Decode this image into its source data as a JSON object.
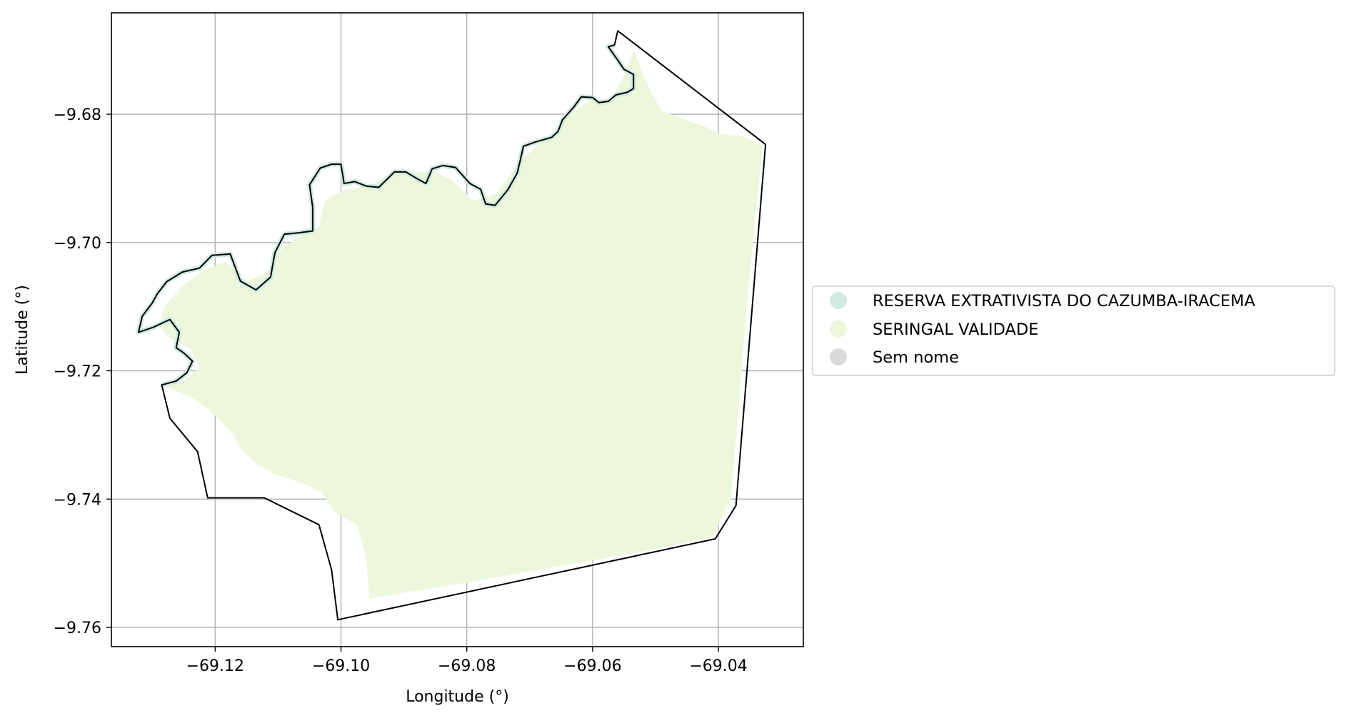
{
  "map": {
    "xlabel": "Longitude (°)",
    "ylabel": "Latitude (°)",
    "xlim": [
      -69.1365,
      -69.0265
    ],
    "ylim": [
      -9.763,
      -9.6642
    ],
    "xticks": [
      {
        "value": -69.12,
        "label": "−69.12"
      },
      {
        "value": -69.1,
        "label": "−69.10"
      },
      {
        "value": -69.08,
        "label": "−69.08"
      },
      {
        "value": -69.06,
        "label": "−69.06"
      },
      {
        "value": -69.04,
        "label": "−69.04"
      }
    ],
    "yticks": [
      {
        "value": -9.68,
        "label": "−9.68"
      },
      {
        "value": -9.7,
        "label": "−9.70"
      },
      {
        "value": -9.72,
        "label": "−9.72"
      },
      {
        "value": -9.74,
        "label": "−9.74"
      },
      {
        "value": -9.76,
        "label": "−9.76"
      }
    ],
    "grid": true,
    "grid_color": "#b0b0b0",
    "outline_color": "#000000",
    "legend": {
      "placement": "right-center",
      "items": [
        {
          "label": "RESERVA EXTRATIVISTA DO CAZUMBA-IRACEMA",
          "color": "#cfeadf"
        },
        {
          "label": "SERINGAL VALIDADE",
          "color": "#ecf7dc"
        },
        {
          "label": "Sem nome",
          "color": "#dadada"
        }
      ]
    },
    "layers": {
      "seringal_validade_fill": [
        [
          -69.1278,
          -9.7225
        ],
        [
          -69.125,
          -9.7215
        ],
        [
          -69.1225,
          -9.7195
        ],
        [
          -69.124,
          -9.7165
        ],
        [
          -69.127,
          -9.715
        ],
        [
          -69.129,
          -9.713
        ],
        [
          -69.128,
          -9.71
        ],
        [
          -69.1255,
          -9.707
        ],
        [
          -69.1215,
          -9.7042
        ],
        [
          -69.1185,
          -9.703
        ],
        [
          -69.115,
          -9.706
        ],
        [
          -69.1112,
          -9.7045
        ],
        [
          -69.1095,
          -9.701
        ],
        [
          -69.1065,
          -9.699
        ],
        [
          -69.1035,
          -9.6975
        ],
        [
          -69.1025,
          -9.6935
        ],
        [
          -69.0995,
          -9.6918
        ],
        [
          -69.0955,
          -9.6912
        ],
        [
          -69.0915,
          -9.689
        ],
        [
          -69.0885,
          -9.689
        ],
        [
          -69.085,
          -9.689
        ],
        [
          -69.0825,
          -9.6902
        ],
        [
          -69.079,
          -9.6935
        ],
        [
          -69.0755,
          -9.6925
        ],
        [
          -69.072,
          -9.688
        ],
        [
          -69.069,
          -9.685
        ],
        [
          -69.066,
          -9.6825
        ],
        [
          -69.0635,
          -9.68
        ],
        [
          -69.0605,
          -9.678
        ],
        [
          -69.057,
          -9.6775
        ],
        [
          -69.055,
          -9.674
        ],
        [
          -69.0535,
          -9.67
        ],
        [
          -69.051,
          -9.676
        ],
        [
          -69.049,
          -9.6795
        ],
        [
          -69.045,
          -9.681
        ],
        [
          -69.042,
          -9.682
        ],
        [
          -69.04,
          -9.683
        ],
        [
          -69.036,
          -9.6835
        ],
        [
          -69.033,
          -9.685
        ],
        [
          -69.0355,
          -9.71
        ],
        [
          -69.038,
          -9.74
        ],
        [
          -69.041,
          -9.746
        ],
        [
          -69.054,
          -9.7485
        ],
        [
          -69.08,
          -9.753
        ],
        [
          -69.0955,
          -9.7555
        ],
        [
          -69.096,
          -9.749
        ],
        [
          -69.0975,
          -9.744
        ],
        [
          -69.101,
          -9.742
        ],
        [
          -69.103,
          -9.739
        ],
        [
          -69.106,
          -9.7375
        ],
        [
          -69.111,
          -9.736
        ],
        [
          -69.114,
          -9.734
        ],
        [
          -69.116,
          -9.732
        ],
        [
          -69.117,
          -9.73
        ],
        [
          -69.119,
          -9.728
        ],
        [
          -69.121,
          -9.726
        ],
        [
          -69.124,
          -9.724
        ]
      ],
      "reserva_outline": [
        [
          -69.1285,
          -9.7222
        ],
        [
          -69.1262,
          -9.7216
        ],
        [
          -69.1245,
          -9.7203
        ],
        [
          -69.1236,
          -9.7185
        ],
        [
          -69.125,
          -9.7172
        ],
        [
          -69.1262,
          -9.7164
        ],
        [
          -69.1257,
          -9.714
        ],
        [
          -69.1272,
          -9.712
        ],
        [
          -69.1298,
          -9.7132
        ],
        [
          -69.1322,
          -9.714
        ],
        [
          -69.1316,
          -9.7115
        ],
        [
          -69.13,
          -9.7094
        ],
        [
          -69.1292,
          -9.708
        ],
        [
          -69.1277,
          -9.7061
        ],
        [
          -69.1252,
          -9.7046
        ],
        [
          -69.1225,
          -9.704
        ],
        [
          -69.1205,
          -9.702
        ],
        [
          -69.1176,
          -9.7018
        ],
        [
          -69.116,
          -9.706
        ],
        [
          -69.1135,
          -9.7074
        ],
        [
          -69.1112,
          -9.7054
        ],
        [
          -69.1105,
          -9.7016
        ],
        [
          -69.109,
          -9.6987
        ],
        [
          -69.1068,
          -9.6985
        ],
        [
          -69.1045,
          -9.6982
        ],
        [
          -69.1045,
          -9.6945
        ],
        [
          -69.105,
          -9.691
        ],
        [
          -69.1033,
          -9.6884
        ],
        [
          -69.1015,
          -9.6878
        ],
        [
          -69.1,
          -9.6878
        ],
        [
          -69.0995,
          -9.6908
        ],
        [
          -69.0978,
          -9.6905
        ],
        [
          -69.096,
          -9.6912
        ],
        [
          -69.094,
          -9.6914
        ],
        [
          -69.0915,
          -9.689
        ],
        [
          -69.0897,
          -9.689
        ],
        [
          -69.088,
          -9.69
        ],
        [
          -69.0865,
          -9.6908
        ],
        [
          -69.0855,
          -9.6885
        ],
        [
          -69.0838,
          -9.688
        ],
        [
          -69.0818,
          -9.6883
        ],
        [
          -69.0795,
          -9.6908
        ],
        [
          -69.0778,
          -9.6917
        ],
        [
          -69.077,
          -9.694
        ],
        [
          -69.0755,
          -9.6942
        ],
        [
          -69.0735,
          -9.6918
        ],
        [
          -69.072,
          -9.6892
        ],
        [
          -69.0715,
          -9.6872
        ],
        [
          -69.071,
          -9.685
        ],
        [
          -69.069,
          -9.6843
        ],
        [
          -69.0665,
          -9.6836
        ],
        [
          -69.0655,
          -9.6827
        ],
        [
          -69.0648,
          -9.6809
        ],
        [
          -69.063,
          -9.6789
        ],
        [
          -69.0618,
          -9.6773
        ],
        [
          -69.06,
          -9.6774
        ],
        [
          -69.059,
          -9.6782
        ],
        [
          -69.0575,
          -9.678
        ],
        [
          -69.0563,
          -9.677
        ],
        [
          -69.0545,
          -9.6766
        ],
        [
          -69.0535,
          -9.676
        ],
        [
          -69.0535,
          -9.6738
        ],
        [
          -69.055,
          -9.673
        ],
        [
          -69.0562,
          -9.6713
        ],
        [
          -69.0575,
          -9.6695
        ],
        [
          -69.0565,
          -9.6692
        ],
        [
          -69.056,
          -9.667
        ],
        [
          -69.0325,
          -9.6847
        ],
        [
          -69.0372,
          -9.741
        ],
        [
          -69.0405,
          -9.7462
        ],
        [
          -69.1005,
          -9.7588
        ],
        [
          -69.1015,
          -9.751
        ],
        [
          -69.1035,
          -9.744
        ],
        [
          -69.1122,
          -9.7398
        ],
        [
          -69.1212,
          -9.7398
        ],
        [
          -69.1228,
          -9.7326
        ],
        [
          -69.1272,
          -9.7274
        ],
        [
          -69.1285,
          -9.7222
        ]
      ]
    }
  }
}
